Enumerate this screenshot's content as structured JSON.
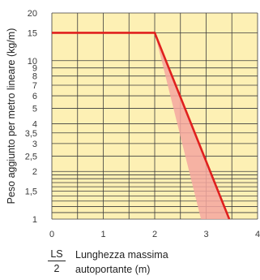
{
  "chart_data": {
    "type": "line",
    "ylabel": "Peso aggiunto per metro lineare (kg/m)",
    "xlim": [
      0,
      4
    ],
    "ylim": [
      1,
      20
    ],
    "y_scale": "log",
    "grid": true,
    "x_ticks": [
      "0",
      "1",
      "2",
      "3",
      "4"
    ],
    "y_ticks": [
      {
        "v": 1,
        "label": "1"
      },
      {
        "v": 1.1,
        "label": ""
      },
      {
        "v": 1.2,
        "label": ""
      },
      {
        "v": 1.3,
        "label": ""
      },
      {
        "v": 1.4,
        "label": ""
      },
      {
        "v": 1.5,
        "label": "1,5"
      },
      {
        "v": 1.6,
        "label": ""
      },
      {
        "v": 1.7,
        "label": ""
      },
      {
        "v": 1.8,
        "label": ""
      },
      {
        "v": 1.9,
        "label": ""
      },
      {
        "v": 2,
        "label": "2"
      },
      {
        "v": 2.5,
        "label": "2,5"
      },
      {
        "v": 3,
        "label": "3"
      },
      {
        "v": 3.5,
        "label": "3,5"
      },
      {
        "v": 4,
        "label": "4"
      },
      {
        "v": 5,
        "label": "5"
      },
      {
        "v": 6,
        "label": "6"
      },
      {
        "v": 7,
        "label": "7"
      },
      {
        "v": 8,
        "label": "8"
      },
      {
        "v": 9,
        "label": "9"
      },
      {
        "v": 10,
        "label": "10"
      },
      {
        "v": 15,
        "label": "15"
      },
      {
        "v": 20,
        "label": "20"
      }
    ],
    "series": [
      {
        "color": "#e0201e",
        "points": [
          [
            0,
            15
          ],
          [
            2,
            15
          ],
          [
            3.45,
            1
          ]
        ]
      }
    ],
    "shaded_band": {
      "color": "#f4a7a0",
      "points": [
        [
          2,
          15
        ],
        [
          2.9,
          1
        ],
        [
          3.45,
          1
        ]
      ]
    }
  },
  "legend": {
    "numerator": "LS",
    "denominator": "2",
    "line1": "Lunghezza massima",
    "line2": "autoportante (m)"
  },
  "colors": {
    "plot_bg": "#fdf0b4",
    "grid": "#3c3c3c",
    "line": "#e0201e",
    "band": "#f4a7a0"
  }
}
